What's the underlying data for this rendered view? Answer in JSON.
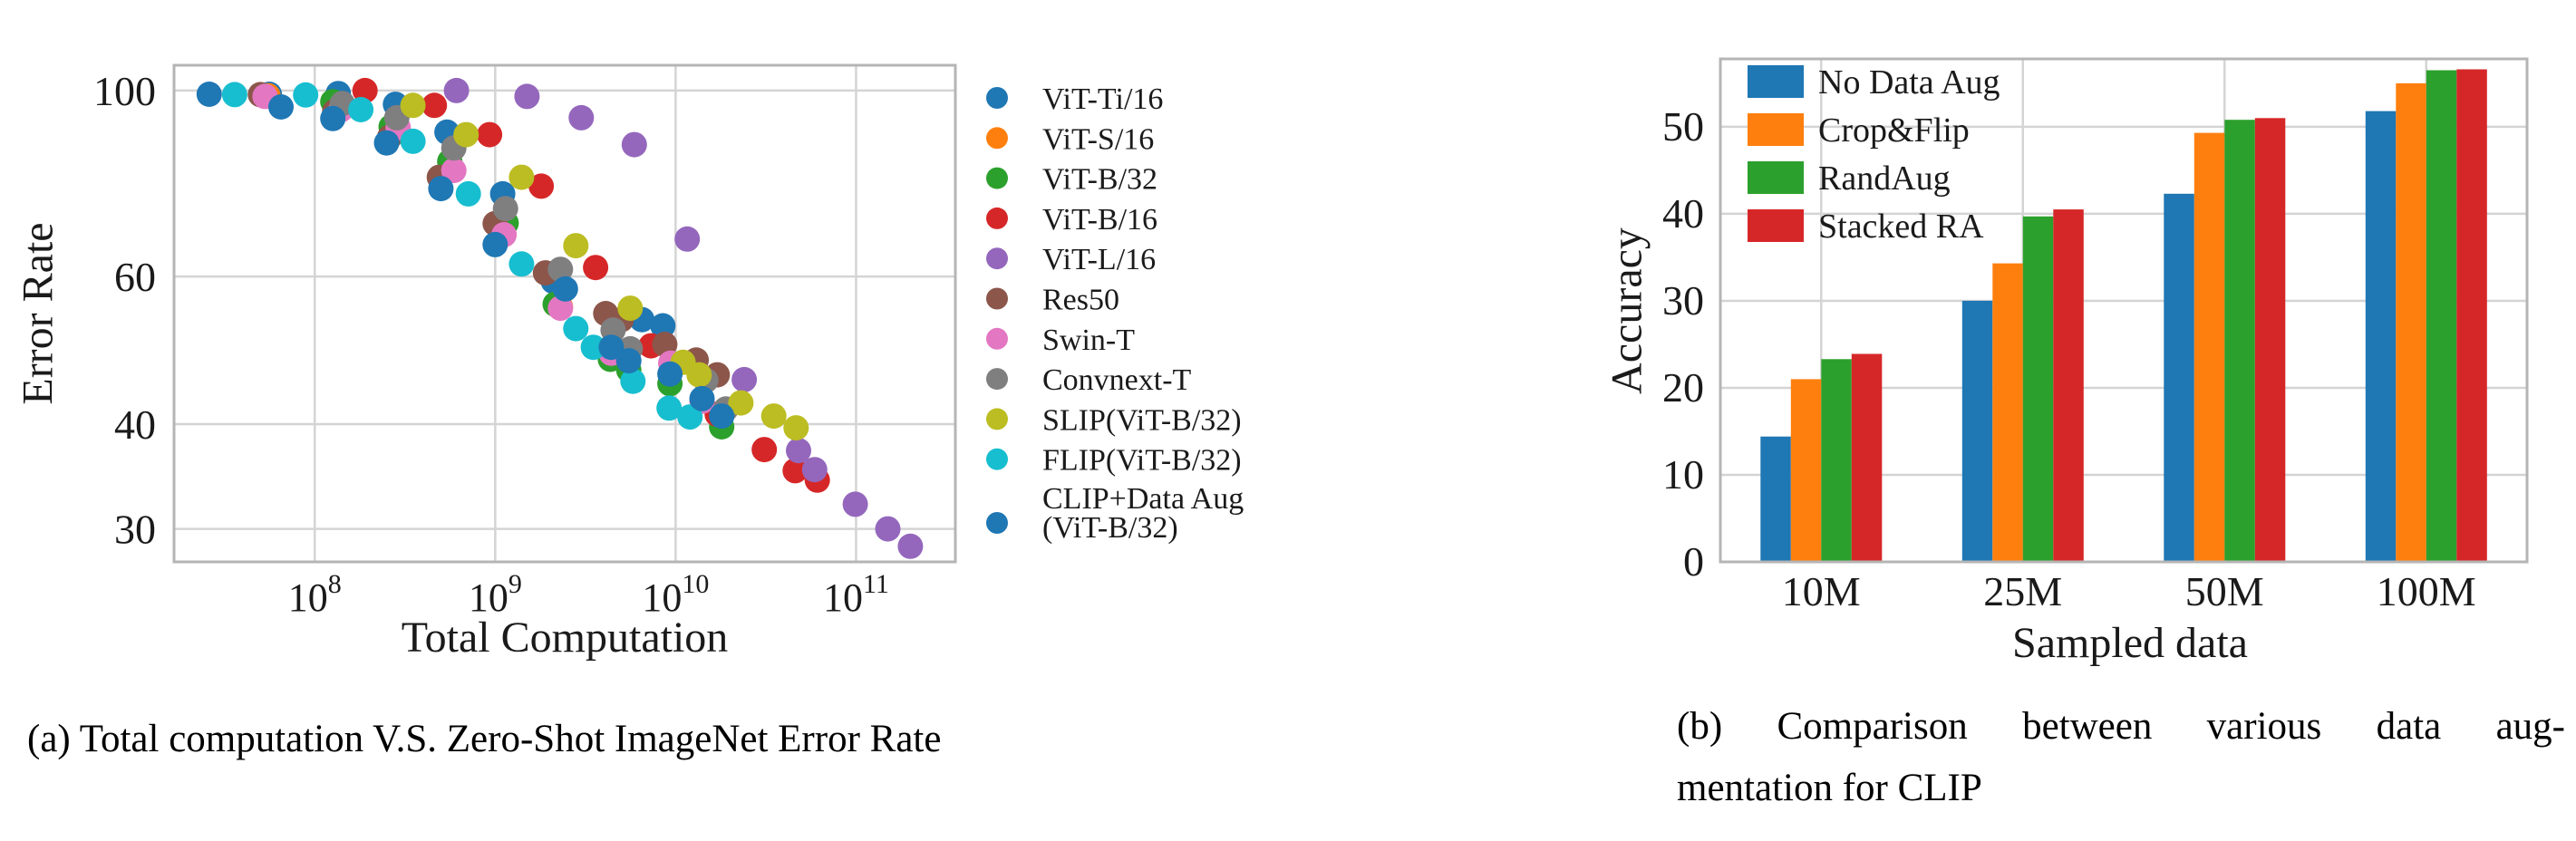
{
  "captions": {
    "a": "(a) Total computation V.S. Zero-Shot ImageNet Error Rate",
    "b_line1": "(b) Comparison between various data aug-",
    "b_line2": "mentation for CLIP"
  },
  "style": {
    "background": "#ffffff",
    "grid_color": "#d4d4d4",
    "spine_color": "#b5b5b5",
    "text_color": "#1a1a1a"
  },
  "chart_data": [
    {
      "type": "scatter",
      "title": "",
      "xlabel": "Total Computation",
      "ylabel": "Error Rate",
      "x_scale": "log",
      "y_scale": "log",
      "xlim": [
        16600000,
        355000000000
      ],
      "ylim": [
        27.4,
        107.2
      ],
      "grid": true,
      "legend_position": "right",
      "x_ticks": [
        {
          "base": "10",
          "exp": "8",
          "value": 100000000.0
        },
        {
          "base": "10",
          "exp": "9",
          "value": 1000000000.0
        },
        {
          "base": "10",
          "exp": "10",
          "value": 10000000000.0
        },
        {
          "base": "10",
          "exp": "11",
          "value": 100000000000.0
        }
      ],
      "y_ticks": [
        {
          "label": "100",
          "value": 100
        },
        {
          "label": "60",
          "value": 60
        },
        {
          "label": "40",
          "value": 40
        },
        {
          "label": "30",
          "value": 30
        }
      ],
      "series": [
        {
          "name": "ViT-Ti/16",
          "label_lines": [
            "ViT-Ti/16"
          ],
          "color": "#1f77b4",
          "points": [
            [
              26000000.0,
              99
            ],
            [
              56000000.0,
              99
            ],
            [
              135000000.0,
              99.2
            ],
            [
              280000000.0,
              96.3
            ],
            [
              540000000.0,
              89.2
            ],
            [
              1100000000.0,
              75.3
            ],
            [
              2100000000.0,
              59.2
            ],
            [
              6500000000.0,
              53.3
            ],
            [
              8500000000.0,
              52.4
            ]
          ]
        },
        {
          "name": "ViT-S/16",
          "label_lines": [
            "ViT-S/16"
          ],
          "color": "#ff7f0e",
          "points": [
            [
              55000000.0,
              98.6
            ],
            [
              1100000000.0,
              67.2
            ],
            [
              2300000000.0,
              55.2
            ],
            [
              4500000000.0,
              48.4
            ],
            [
              9600000000.0,
              47.0
            ]
          ]
        },
        {
          "name": "ViT-B/32",
          "label_lines": [
            "ViT-B/32"
          ],
          "color": "#2ca02c",
          "points": [
            [
              126000000.0,
              97
            ],
            [
              265000000.0,
              90.5
            ],
            [
              560000000.0,
              82.3
            ],
            [
              1150000000.0,
              69.5
            ],
            [
              2150000000.0,
              55.6
            ],
            [
              4350000000.0,
              47.8
            ],
            [
              5500000000.0,
              46.4
            ],
            [
              9300000000.0,
              44.7
            ],
            [
              18000000000.0,
              39.7
            ]
          ]
        },
        {
          "name": "ViT-B/16",
          "label_lines": [
            "ViT-B/16"
          ],
          "color": "#d62728",
          "points": [
            [
              190000000.0,
              100
            ],
            [
              460000000.0,
              96
            ],
            [
              930000000.0,
              88.6
            ],
            [
              1800000000.0,
              76.9
            ],
            [
              3600000000.0,
              61.5
            ],
            [
              7300000000.0,
              49.6
            ],
            [
              17000000000.0,
              41.1
            ],
            [
              31000000000.0,
              37.3
            ],
            [
              46000000000.0,
              35.2
            ],
            [
              61000000000.0,
              34.3
            ]
          ]
        },
        {
          "name": "ViT-L/16",
          "label_lines": [
            "ViT-L/16"
          ],
          "color": "#9467bd",
          "points": [
            [
              610000000.0,
              100
            ],
            [
              1500000000.0,
              98.4
            ],
            [
              3000000000.0,
              92.8
            ],
            [
              5900000000.0,
              86.2
            ],
            [
              11600000000.0,
              66.5
            ],
            [
              24000000000.0,
              45.2
            ],
            [
              48000000000.0,
              37.2
            ],
            [
              59000000000.0,
              35.3
            ],
            [
              99000000000.0,
              32.1
            ],
            [
              150000000000.0,
              30.0
            ],
            [
              200000000000.0,
              28.6
            ]
          ]
        },
        {
          "name": "Res50",
          "label_lines": [
            "Res50"
          ],
          "color": "#8c564b",
          "points": [
            [
              50000000.0,
              98.9
            ],
            [
              129000000.0,
              94.4
            ],
            [
              260000000.0,
              88.0
            ],
            [
              490000000.0,
              78.8
            ],
            [
              1000000000.0,
              69.4
            ],
            [
              1900000000.0,
              60.6
            ],
            [
              4100000000.0,
              54.2
            ],
            [
              5000000000.0,
              53.3
            ],
            [
              8700000000.0,
              49.8
            ],
            [
              13000000000.0,
              47.7
            ],
            [
              17000000000.0,
              45.8
            ]
          ]
        },
        {
          "name": "Swin-T",
          "label_lines": [
            "Swin-T"
          ],
          "color": "#e377c2",
          "points": [
            [
              53000000.0,
              98.4
            ],
            [
              140000000.0,
              94.9
            ],
            [
              290000000.0,
              90.3
            ],
            [
              590000000.0,
              80.3
            ],
            [
              1120000000.0,
              67.3
            ],
            [
              2300000000.0,
              55.0
            ],
            [
              4400000000.0,
              48.6
            ],
            [
              9400000000.0,
              47.3
            ],
            [
              14000000000.0,
              42.6
            ]
          ]
        },
        {
          "name": "Convnext-T",
          "label_lines": [
            "Convnext-T"
          ],
          "color": "#7f7f7f",
          "points": [
            [
              142000000.0,
              96.5
            ],
            [
              285000000.0,
              92.8
            ],
            [
              590000000.0,
              85.4
            ],
            [
              1140000000.0,
              72.3
            ],
            [
              2300000000.0,
              61.2
            ],
            [
              4500000000.0,
              51.8
            ],
            [
              5600000000.0,
              49.2
            ],
            [
              14700000000.0,
              45.1
            ],
            [
              19000000000.0,
              41.7
            ]
          ]
        },
        {
          "name": "SLIP(ViT-B/32)",
          "label_lines": [
            "SLIP(ViT-B/32)"
          ],
          "color": "#bcbd22",
          "points": [
            [
              350000000.0,
              96
            ],
            [
              690000000.0,
              88.6
            ],
            [
              1400000000.0,
              78.8
            ],
            [
              2800000000.0,
              65.3
            ],
            [
              5600000000.0,
              55.0
            ],
            [
              11000000000.0,
              47.4
            ],
            [
              13500000000.0,
              45.8
            ],
            [
              23000000000.0,
              42.4
            ],
            [
              35000000000.0,
              40.9
            ],
            [
              46500000000.0,
              39.6
            ]
          ]
        },
        {
          "name": "FLIP(ViT-B/32)",
          "label_lines": [
            "FLIP(ViT-B/32)"
          ],
          "color": "#17becf",
          "points": [
            [
              36000000.0,
              98.9
            ],
            [
              89000000.0,
              98.8
            ],
            [
              180000000.0,
              94.9
            ],
            [
              350000000.0,
              87.0
            ],
            [
              710000000.0,
              75.3
            ],
            [
              1400000000.0,
              62.1
            ],
            [
              2800000000.0,
              52.0
            ],
            [
              3500000000.0,
              49.4
            ],
            [
              5800000000.0,
              45.0
            ],
            [
              9200000000.0,
              41.8
            ],
            [
              12000000000.0,
              40.8
            ]
          ]
        },
        {
          "name": "CLIP+Data Aug (ViT-B/32)",
          "label_lines": [
            "CLIP+Data Aug",
            "(ViT-B/32)"
          ],
          "color": "#1f77b4",
          "points": [
            [
              65000000.0,
              95.6
            ],
            [
              126000000.0,
              92.6
            ],
            [
              250000000.0,
              86.6
            ],
            [
              500000000.0,
              76.4
            ],
            [
              1000000000.0,
              65.5
            ],
            [
              2450000000.0,
              58.0
            ],
            [
              4400000000.0,
              49.4
            ],
            [
              5500000000.0,
              47.6
            ],
            [
              9300000000.0,
              45.9
            ],
            [
              14000000000.0,
              42.9
            ],
            [
              18000000000.0,
              40.9
            ]
          ]
        }
      ]
    },
    {
      "type": "bar",
      "title": "",
      "xlabel": "Sampled data",
      "ylabel": "Accuracy",
      "categories": [
        "10M",
        "25M",
        "50M",
        "100M"
      ],
      "y_ticks": [
        0,
        10,
        20,
        30,
        40,
        50
      ],
      "ylim": [
        0,
        57.8
      ],
      "grid": true,
      "legend_position": "upper left",
      "series": [
        {
          "name": "No Data Aug",
          "color": "#1f77b4",
          "values": [
            14.4,
            30.0,
            42.3,
            51.8
          ]
        },
        {
          "name": "Crop&Flip",
          "color": "#ff7f0e",
          "values": [
            21.0,
            34.3,
            49.3,
            55.0
          ]
        },
        {
          "name": "RandAug",
          "color": "#2ca02c",
          "values": [
            23.3,
            39.7,
            50.8,
            56.5
          ]
        },
        {
          "name": "Stacked RA",
          "color": "#d62728",
          "values": [
            23.9,
            40.5,
            51.0,
            56.6
          ]
        }
      ]
    }
  ]
}
